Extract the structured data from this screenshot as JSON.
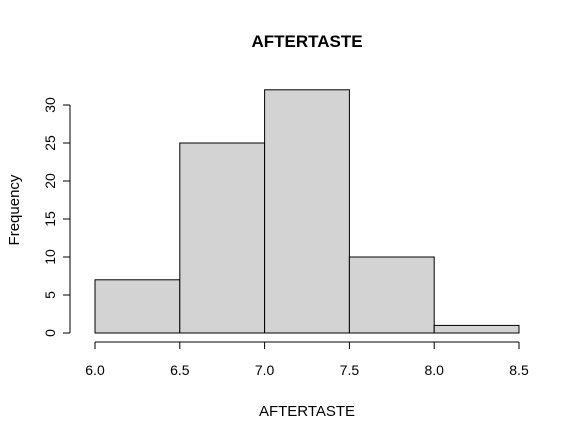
{
  "chart_data": {
    "type": "bar",
    "title": "AFTERTASTE",
    "xlabel": "AFTERTASTE",
    "ylabel": "Frequency",
    "bins": [
      [
        6.0,
        6.5
      ],
      [
        6.5,
        7.0
      ],
      [
        7.0,
        7.5
      ],
      [
        7.5,
        8.0
      ],
      [
        8.0,
        8.5
      ]
    ],
    "values": [
      7,
      25,
      32,
      10,
      1
    ],
    "x_ticks": [
      "6.0",
      "6.5",
      "7.0",
      "7.5",
      "8.0",
      "8.5"
    ],
    "y_ticks": [
      "0",
      "5",
      "10",
      "15",
      "20",
      "25",
      "30"
    ],
    "xlim": [
      6.0,
      8.5
    ],
    "ylim": [
      0,
      30
    ],
    "bar_color": "#d3d3d3",
    "grid": false
  }
}
